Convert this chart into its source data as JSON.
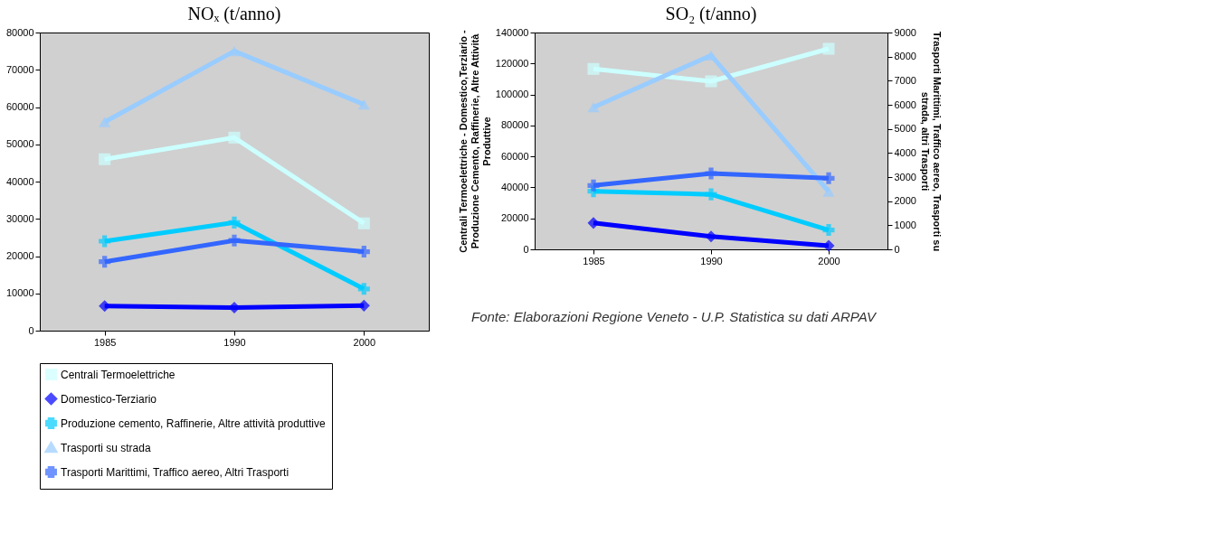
{
  "chart_data": [
    {
      "type": "line",
      "title": "NOₓ (t/anno)",
      "categories": [
        "1985",
        "1990",
        "2000"
      ],
      "ylim": [
        0,
        80000
      ],
      "yticks": [
        0,
        10000,
        20000,
        30000,
        40000,
        50000,
        60000,
        70000,
        80000
      ],
      "legend": "bottom",
      "line_style": "solid",
      "series": [
        {
          "name": "Centrali Termoelettriche",
          "color": "#ccffff",
          "marker": "square",
          "values": [
            46000,
            51800,
            28800
          ]
        },
        {
          "name": "Domestico-Terziario",
          "color": "#0000ff",
          "marker": "diamond",
          "values": [
            6600,
            6200,
            6700
          ]
        },
        {
          "name": "Produzione cemento, Raffinerie, Altre attività produttive",
          "color": "#00ccff",
          "marker": "cross",
          "values": [
            24000,
            29000,
            11200
          ]
        },
        {
          "name": "Trasporti su strada",
          "color": "#99ccff",
          "marker": "triangle",
          "values": [
            56000,
            75000,
            60700
          ]
        },
        {
          "name": "Trasporti Marittimi, Traffico aereo, Altri Trasporti",
          "color": "#3366ff",
          "marker": "cross",
          "values": [
            18500,
            24200,
            21200
          ]
        }
      ]
    },
    {
      "type": "line",
      "title": "SO₂ (t/anno)",
      "categories": [
        "1985",
        "1990",
        "2000"
      ],
      "ylabel": "Centrali Termoelettriche - Domestico,Terziario - Produzione Cemento, Raffinerie, Altre Attività Produttive",
      "y2label": "Trasporti Marittimi, Traffico aereo, Trasporti su strada, altri Trasporti",
      "ylim": [
        0,
        140000
      ],
      "yticks": [
        0,
        20000,
        40000,
        60000,
        80000,
        100000,
        120000,
        140000
      ],
      "y2lim": [
        0,
        9000
      ],
      "y2ticks": [
        0,
        1000,
        2000,
        3000,
        4000,
        5000,
        6000,
        7000,
        8000,
        9000
      ],
      "line_style": "solid",
      "annotations": [
        "Fonte: Elaborazioni Regione Veneto - U.P. Statistica su dati ARPAV"
      ],
      "series": [
        {
          "color": "#ccffff",
          "marker": "square",
          "values": [
            116500,
            108500,
            129500
          ]
        },
        {
          "color": "#0000ff",
          "marker": "diamond",
          "values": [
            17000,
            8300,
            2300
          ]
        },
        {
          "color": "#00ccff",
          "marker": "cross",
          "values": [
            37500,
            35500,
            12500
          ]
        },
        {
          "color": "#99ccff",
          "marker": "triangle",
          "axis": "y2",
          "values": [
            5900,
            8050,
            2400
          ]
        },
        {
          "color": "#3366ff",
          "marker": "cross",
          "axis": "y2",
          "values": [
            2650,
            3150,
            2950
          ]
        }
      ]
    }
  ]
}
